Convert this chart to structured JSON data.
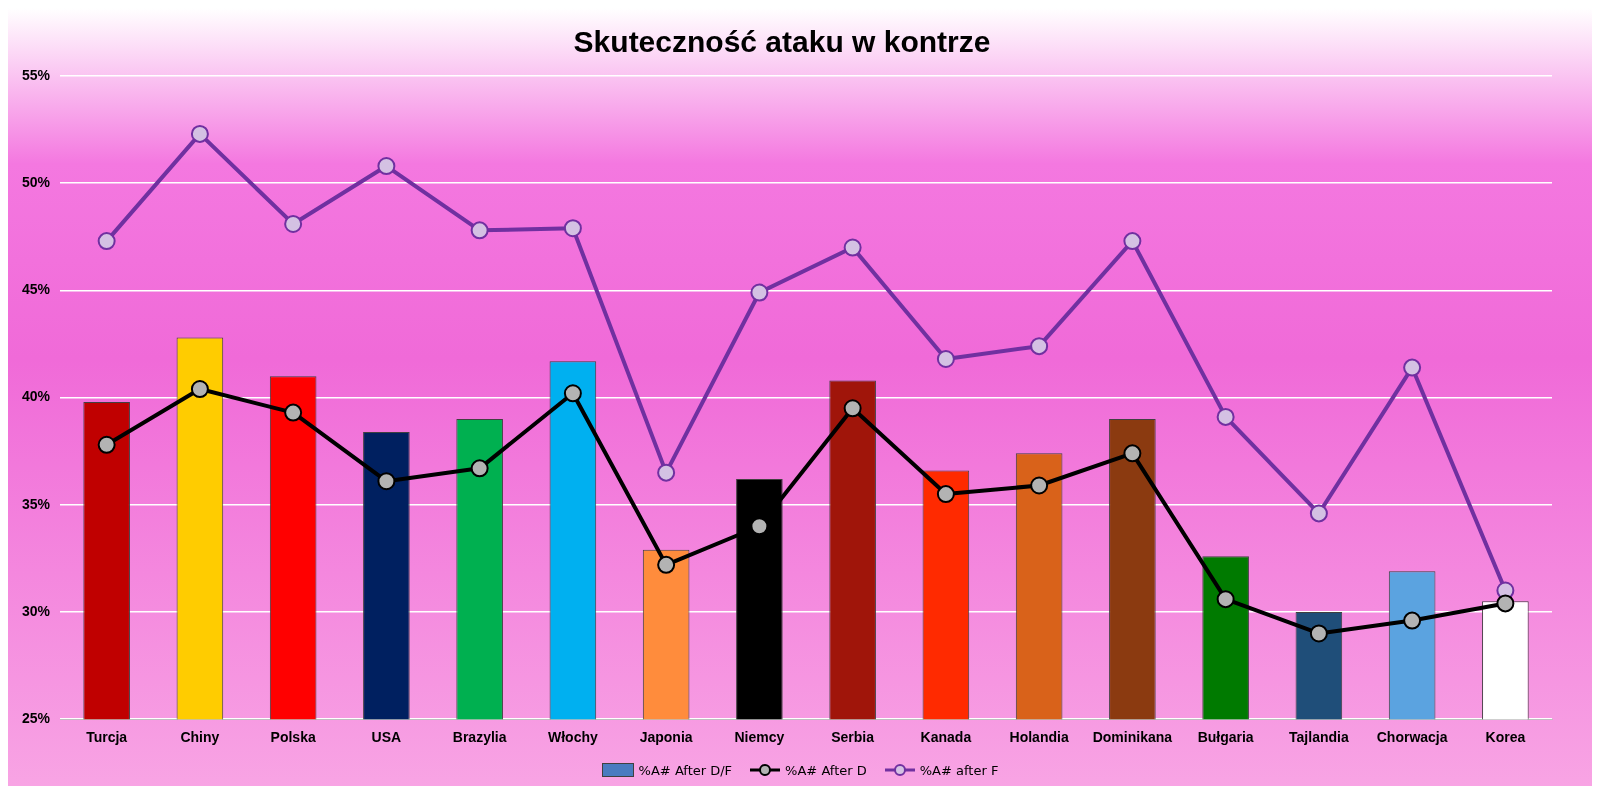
{
  "chart_data": {
    "type": "bar",
    "title": "Skuteczność ataku w kontrze",
    "categories": [
      "Turcja",
      "Chiny",
      "Polska",
      "USA",
      "Brazylia",
      "Włochy",
      "Japonia",
      "Niemcy",
      "Serbia",
      "Kanada",
      "Holandia",
      "Dominikana",
      "Bułgaria",
      "Tajlandia",
      "Chorwacja",
      "Korea"
    ],
    "series": [
      {
        "name": "%A# After D/F",
        "color": "#4a7bc0",
        "colors": [
          "#c00000",
          "#ffcc00",
          "#ff0000",
          "#002060",
          "#00b050",
          "#00b0f0",
          "#ff8c3c",
          "#000000",
          "#a0150a",
          "#ff2a00",
          "#d9621a",
          "#8b3a10",
          "#007a00",
          "#1f4e79",
          "#5ba3e0",
          "#ffffff"
        ],
        "values": [
          39.8,
          42.8,
          41.0,
          38.4,
          39.0,
          41.7,
          32.9,
          36.2,
          40.8,
          36.6,
          37.4,
          39.0,
          32.6,
          30.0,
          31.9,
          30.5
        ]
      },
      {
        "name": "%A# After D",
        "type": "line",
        "color": "#000000",
        "values": [
          37.8,
          40.4,
          39.3,
          36.1,
          36.7,
          40.2,
          32.2,
          34.0,
          39.5,
          35.5,
          35.9,
          37.4,
          30.6,
          29.0,
          29.6,
          30.4
        ]
      },
      {
        "name": "%A# after F",
        "type": "line",
        "color": "#7030a0",
        "values": [
          47.3,
          52.3,
          48.1,
          50.8,
          47.8,
          47.9,
          36.5,
          44.9,
          47.0,
          41.8,
          42.4,
          47.3,
          39.1,
          34.6,
          41.4,
          31.0
        ]
      }
    ],
    "ylim": [
      25,
      55
    ],
    "yticks": [
      {
        "value": 25,
        "label": "25%"
      },
      {
        "value": 30,
        "label": "30%"
      },
      {
        "value": 35,
        "label": "35%"
      },
      {
        "value": 40,
        "label": "40%"
      },
      {
        "value": 45,
        "label": "45%"
      },
      {
        "value": 50,
        "label": "50%"
      },
      {
        "value": 55,
        "label": "55%"
      }
    ],
    "grid": "y",
    "legend": "bottom",
    "marker": "circle",
    "line_style": "solid"
  }
}
